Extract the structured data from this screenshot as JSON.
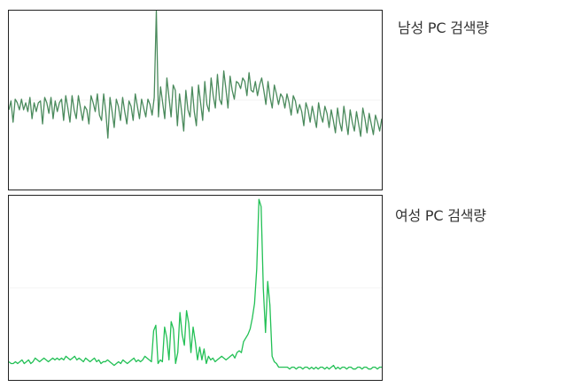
{
  "chart_data": [
    {
      "type": "line",
      "title": "",
      "series": [
        {
          "name": "남성 PC 검색량",
          "color": "#4a8a5c",
          "values": [
            44,
            49,
            37,
            50,
            48,
            44,
            50,
            44,
            48,
            43,
            51,
            39,
            48,
            43,
            48,
            49,
            36,
            51,
            48,
            42,
            51,
            39,
            49,
            43,
            48,
            50,
            38,
            52,
            45,
            37,
            52,
            44,
            39,
            52,
            45,
            38,
            46,
            44,
            36,
            52,
            48,
            43,
            53,
            41,
            38,
            53,
            43,
            28,
            51,
            43,
            34,
            50,
            46,
            38,
            51,
            43,
            36,
            49,
            46,
            38,
            53,
            46,
            39,
            50,
            45,
            40,
            50,
            47,
            41,
            51,
            100,
            40,
            57,
            48,
            39,
            62,
            51,
            40,
            58,
            55,
            35,
            53,
            43,
            32,
            55,
            44,
            40,
            57,
            43,
            35,
            58,
            48,
            38,
            60,
            47,
            43,
            62,
            52,
            45,
            64,
            50,
            47,
            66,
            56,
            45,
            63,
            55,
            50,
            60,
            59,
            56,
            62,
            60,
            52,
            65,
            55,
            54,
            60,
            52,
            58,
            62,
            55,
            47,
            60,
            51,
            45,
            58,
            53,
            47,
            53,
            51,
            45,
            53,
            48,
            41,
            52,
            49,
            42,
            47,
            43,
            35,
            48,
            44,
            37,
            46,
            40,
            34,
            48,
            41,
            37,
            46,
            42,
            34,
            44,
            38,
            31,
            45,
            37,
            32,
            46,
            38,
            30,
            44,
            37,
            32,
            43,
            36,
            29,
            45,
            39,
            31,
            42,
            36,
            30,
            41,
            37,
            32,
            39
          ],
          "y_max_hint": 100
        }
      ],
      "ylim": [
        0,
        100
      ]
    },
    {
      "type": "line",
      "title": "",
      "series": [
        {
          "name": "여성 PC 검색량",
          "color": "#22c055",
          "values": [
            9,
            8,
            8,
            9,
            8,
            9,
            10,
            8,
            9,
            10,
            8,
            9,
            11,
            10,
            9,
            10,
            11,
            10,
            9,
            10,
            11,
            10,
            11,
            10,
            11,
            10,
            12,
            11,
            10,
            11,
            12,
            10,
            11,
            10,
            9,
            11,
            10,
            9,
            10,
            11,
            9,
            10,
            8,
            9,
            9,
            10,
            9,
            8,
            7,
            8,
            9,
            8,
            10,
            9,
            8,
            9,
            10,
            11,
            9,
            10,
            9,
            10,
            12,
            11,
            10,
            9,
            26,
            29,
            8,
            10,
            9,
            28,
            22,
            10,
            31,
            27,
            8,
            14,
            36,
            24,
            18,
            37,
            30,
            14,
            28,
            20,
            10,
            17,
            10,
            16,
            8,
            12,
            10,
            11,
            9,
            10,
            11,
            12,
            11,
            10,
            11,
            12,
            13,
            11,
            14,
            15,
            14,
            20,
            22,
            24,
            27,
            33,
            41,
            60,
            98,
            94,
            49,
            25,
            53,
            40,
            12,
            9,
            8,
            6,
            6,
            6,
            6,
            6,
            5,
            6,
            6,
            5,
            6,
            6,
            5,
            6,
            6,
            5,
            6,
            5,
            6,
            5,
            6,
            6,
            5,
            6,
            5,
            6,
            7,
            5,
            6,
            5,
            6,
            6,
            5,
            6,
            6,
            5,
            5,
            6,
            6,
            5,
            6,
            6,
            5,
            5,
            6,
            6,
            5,
            6,
            6
          ],
          "y_max_hint": 100
        }
      ],
      "ylim": [
        0,
        100
      ]
    }
  ]
}
